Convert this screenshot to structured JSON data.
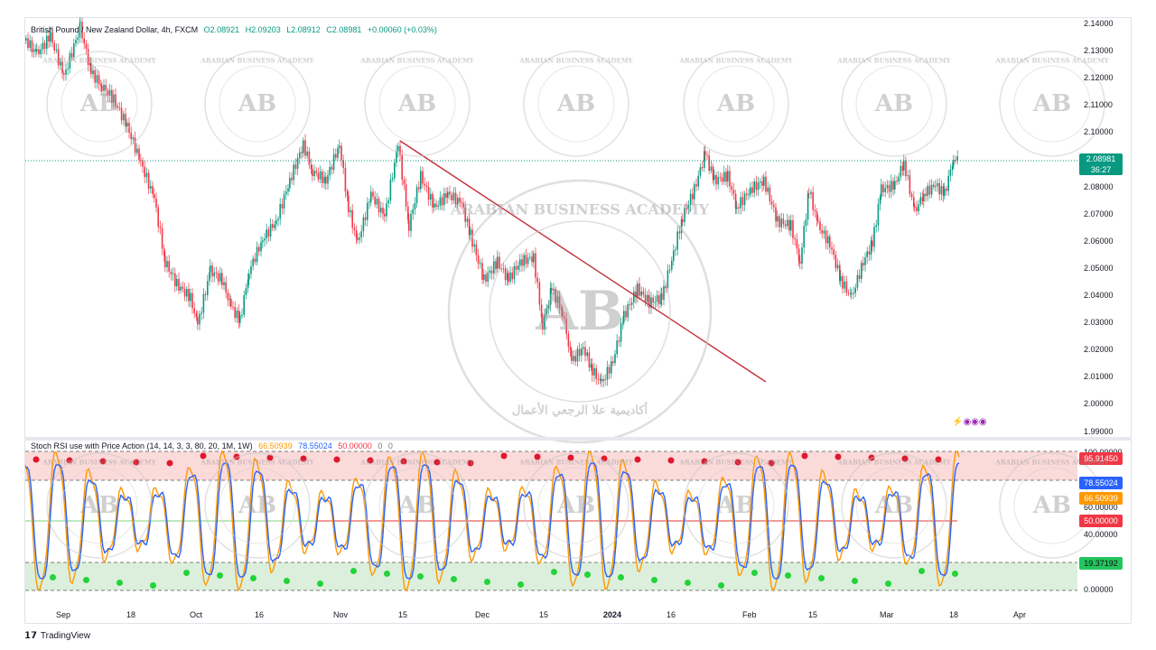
{
  "chart": {
    "symbol_title": "British Pound / New Zealand Dollar, 4h, FXCM",
    "open": "O2.08921",
    "high": "H2.09203",
    "low": "L2.08912",
    "close": "C2.08981",
    "change": "+0.00060 (+0.03%)",
    "last_price": "2.08981",
    "countdown": "36:27",
    "price_axis": [
      "2.14000",
      "2.13000",
      "2.12000",
      "2.11000",
      "2.10000",
      "2.09000",
      "2.08000",
      "2.07000",
      "2.06000",
      "2.05000",
      "2.04000",
      "2.03000",
      "2.02000",
      "2.01000",
      "2.00000",
      "1.99000"
    ],
    "time_axis": [
      "Sep",
      "18",
      "Oct",
      "16",
      "Nov",
      "15",
      "Dec",
      "15",
      "2024",
      "16",
      "Feb",
      "15",
      "Mar",
      "18",
      "Apr"
    ]
  },
  "indicator": {
    "name": "Stoch RSI use with Price Action (14, 14, 3, 3, 80, 20, 1M, 1W)",
    "k_value": "66.50939",
    "d_value": "78.55024",
    "mid_value": "50.00000",
    "extra1": "0",
    "extra2": "0",
    "axis": [
      "100.00000",
      "60.00000",
      "40.00000",
      "0.00000"
    ],
    "tags": {
      "upper": "95.91450",
      "d": "78.55024",
      "k": "66.50939",
      "mid": "50.00000",
      "lower": "19.37192"
    }
  },
  "watermark": {
    "line1": "ARABIAN BUSINESS ACADEMY",
    "initials": "AB",
    "arabic": "أكاديمية علا الرجعي الأعمال"
  },
  "branding": {
    "name": "TradingView"
  },
  "colors": {
    "up": "#089981",
    "down": "#f23645",
    "k_line": "#ff9800",
    "d_line": "#2962ff",
    "trendline": "#c2303c",
    "overbought_fill": "#fbdada",
    "oversold_fill": "#dcefdc"
  }
}
